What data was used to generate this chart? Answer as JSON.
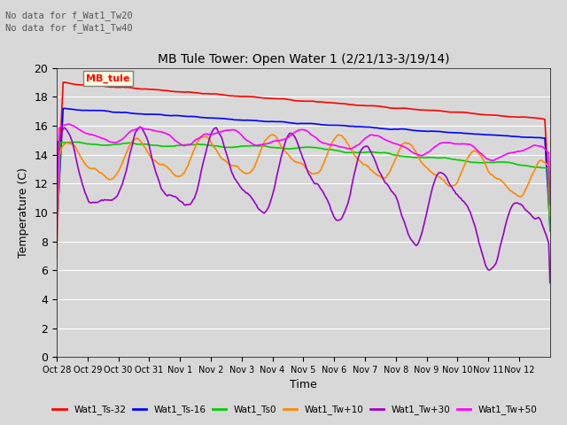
{
  "title": "MB Tule Tower: Open Water 1 (2/21/13-3/19/14)",
  "xlabel": "Time",
  "ylabel": "Temperature (C)",
  "ylim": [
    0,
    20
  ],
  "yticks": [
    0,
    2,
    4,
    6,
    8,
    10,
    12,
    14,
    16,
    18,
    20
  ],
  "background_color": "#d8d8d8",
  "text_above": [
    "No data for f_Wat1_Tw20",
    "No data for f_Wat1_Tw40"
  ],
  "legend_box_label": "MB_tule",
  "lines": [
    {
      "label": "Wat1_Ts-32",
      "color": "#ff0000"
    },
    {
      "label": "Wat1_Ts-16",
      "color": "#0000ff"
    },
    {
      "label": "Wat1_Ts0",
      "color": "#00cc00"
    },
    {
      "label": "Wat1_Tw+10",
      "color": "#ff8800"
    },
    {
      "label": "Wat1_Tw+30",
      "color": "#9900cc"
    },
    {
      "label": "Wat1_Tw+50",
      "color": "#ff00ff"
    }
  ],
  "xtick_labels": [
    "Oct 28",
    "Oct 29",
    "Oct 30",
    "Oct 31",
    "Nov 1",
    "Nov 2",
    "Nov 3",
    "Nov 4",
    "Nov 5",
    "Nov 6",
    "Nov 7",
    "Nov 8",
    "Nov 9",
    "Nov 10",
    "Nov 11",
    "Nov 12"
  ],
  "fontsize": 9
}
